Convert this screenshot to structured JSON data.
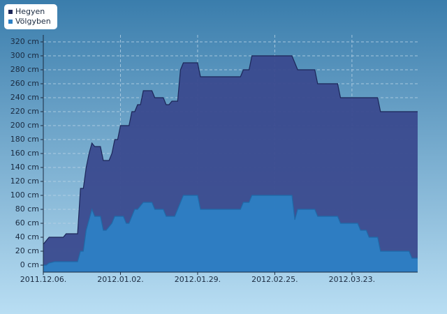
{
  "chart_data": {
    "type": "area",
    "xlim": [
      "2011.12.06.",
      "2012.04.15."
    ],
    "xticks": [
      "2011.12.06.",
      "2012.01.02.",
      "2012.01.29.",
      "2012.02.25.",
      "2012.03.23."
    ],
    "ylim": [
      -10,
      330
    ],
    "yticks": [
      {
        "value": 0,
        "label": "0 cm"
      },
      {
        "value": 20,
        "label": "20 cm"
      },
      {
        "value": 40,
        "label": "40 cm"
      },
      {
        "value": 60,
        "label": "60 cm"
      },
      {
        "value": 80,
        "label": "80 cm"
      },
      {
        "value": 100,
        "label": "100 cm"
      },
      {
        "value": 120,
        "label": "120 cm"
      },
      {
        "value": 140,
        "label": "140 cm"
      },
      {
        "value": 160,
        "label": "160 cm"
      },
      {
        "value": 180,
        "label": "180 cm"
      },
      {
        "value": 200,
        "label": "200 cm"
      },
      {
        "value": 220,
        "label": "220 cm"
      },
      {
        "value": 240,
        "label": "240 cm"
      },
      {
        "value": 260,
        "label": "260 cm"
      },
      {
        "value": 280,
        "label": "280 cm"
      },
      {
        "value": 300,
        "label": "300 cm"
      },
      {
        "value": 320,
        "label": "320 cm"
      }
    ],
    "grid": true,
    "legend": "top-left",
    "series": [
      {
        "name": "Hegyen",
        "color": "#3a4a8e",
        "line_color": "#1c2658",
        "x": [
          "2011.12.06.",
          "2011.12.08.",
          "2011.12.13.",
          "2011.12.14.",
          "2011.12.18.",
          "2011.12.19.",
          "2011.12.20.",
          "2011.12.21.",
          "2011.12.22.",
          "2011.12.23.",
          "2011.12.24.",
          "2011.12.26.",
          "2011.12.27.",
          "2011.12.29.",
          "2011.12.30.",
          "2011.12.31.",
          "2012.01.01.",
          "2012.01.02.",
          "2012.01.05.",
          "2012.01.06.",
          "2012.01.07.",
          "2012.01.08.",
          "2012.01.09.",
          "2012.01.10.",
          "2012.01.13.",
          "2012.01.14.",
          "2012.01.17.",
          "2012.01.18.",
          "2012.01.19.",
          "2012.01.20.",
          "2012.01.22.",
          "2012.01.23.",
          "2012.01.24.",
          "2012.01.29.",
          "2012.01.30.",
          "2012.02.13.",
          "2012.02.14.",
          "2012.02.16.",
          "2012.02.17.",
          "2012.03.02.",
          "2012.03.04.",
          "2012.03.10.",
          "2012.03.11.",
          "2012.03.18.",
          "2012.03.19.",
          "2012.04.01.",
          "2012.04.02.",
          "2012.04.15."
        ],
        "values": [
          30,
          40,
          40,
          45,
          45,
          110,
          110,
          140,
          160,
          175,
          170,
          170,
          150,
          150,
          160,
          180,
          180,
          200,
          200,
          220,
          220,
          230,
          230,
          250,
          250,
          240,
          240,
          230,
          230,
          235,
          235,
          280,
          290,
          290,
          270,
          270,
          280,
          280,
          300,
          300,
          280,
          280,
          260,
          260,
          240,
          240,
          220,
          220
        ]
      },
      {
        "name": "Völgyben",
        "color": "#2d80c4",
        "line_color": "#1f6aa8",
        "x": [
          "2011.12.06.",
          "2011.12.07.",
          "2011.12.08.",
          "2011.12.10.",
          "2011.12.18.",
          "2011.12.19.",
          "2011.12.20.",
          "2011.12.21.",
          "2011.12.23.",
          "2011.12.24.",
          "2011.12.26.",
          "2011.12.27.",
          "2011.12.28.",
          "2011.12.30.",
          "2011.12.31.",
          "2012.01.03.",
          "2012.01.04.",
          "2012.01.05.",
          "2012.01.06.",
          "2012.01.07.",
          "2012.01.08.",
          "2012.01.10.",
          "2012.01.13.",
          "2012.01.14.",
          "2012.01.17.",
          "2012.01.18.",
          "2012.01.21.",
          "2012.01.23.",
          "2012.01.24.",
          "2012.01.29.",
          "2012.01.30.",
          "2012.02.13.",
          "2012.02.14.",
          "2012.02.16.",
          "2012.02.17.",
          "2012.03.02.",
          "2012.03.03.",
          "2012.03.04.",
          "2012.03.10.",
          "2012.03.11.",
          "2012.03.18.",
          "2012.03.19.",
          "2012.03.25.",
          "2012.03.26.",
          "2012.03.28.",
          "2012.03.29.",
          "2012.04.01.",
          "2012.04.02.",
          "2012.04.12.",
          "2012.04.13.",
          "2012.04.15."
        ],
        "values": [
          0,
          0,
          3,
          5,
          5,
          20,
          20,
          50,
          80,
          70,
          70,
          50,
          50,
          60,
          70,
          70,
          60,
          60,
          70,
          80,
          80,
          90,
          90,
          80,
          80,
          70,
          70,
          90,
          100,
          100,
          80,
          80,
          90,
          90,
          100,
          100,
          65,
          80,
          80,
          70,
          70,
          60,
          60,
          50,
          50,
          40,
          40,
          20,
          20,
          10,
          10
        ]
      }
    ]
  }
}
